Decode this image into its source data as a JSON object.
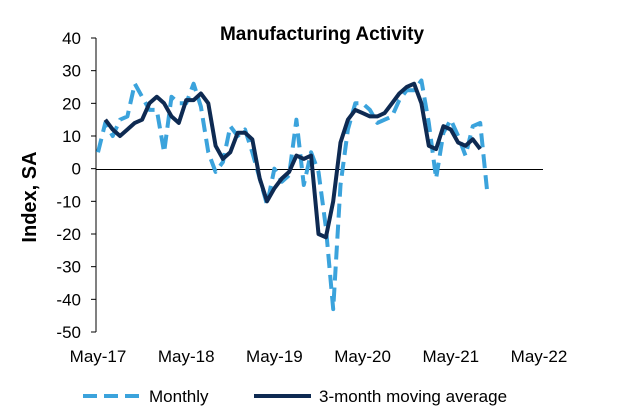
{
  "chart_data": {
    "type": "line",
    "title": "Manufacturing Activity",
    "xlabel": "",
    "ylabel": "Index, SA",
    "ylim": [
      -50,
      40
    ],
    "yticks": [
      40,
      30,
      20,
      10,
      0,
      -10,
      -20,
      -30,
      -40,
      -50
    ],
    "grid": false,
    "legend_position": "bottom",
    "x_tick_labels": [
      {
        "index": 0,
        "label": "May-17"
      },
      {
        "index": 12,
        "label": "May-18"
      },
      {
        "index": 24,
        "label": "May-19"
      },
      {
        "index": 36,
        "label": "May-20"
      },
      {
        "index": 48,
        "label": "May-21"
      },
      {
        "index": 60,
        "label": "May-22"
      }
    ],
    "series": [
      {
        "name": "Monthly",
        "color": "#3ba3dc",
        "style": "dashed",
        "values": [
          5,
          14,
          10,
          15,
          16,
          26,
          22,
          18,
          18,
          5,
          22,
          20,
          20,
          26,
          19,
          5,
          -1,
          2,
          13,
          10,
          12,
          5,
          -3,
          -11,
          0,
          -4,
          -2,
          15,
          -5,
          5,
          -1,
          -18,
          -43,
          -5,
          12,
          20,
          20,
          18,
          14,
          15,
          16,
          21,
          24,
          24,
          27,
          14,
          -3,
          11,
          15,
          10,
          4,
          13,
          14,
          -8
        ]
      },
      {
        "name": "3-month moving average",
        "color": "#0e2a52",
        "style": "solid",
        "values": [
          15,
          12,
          10,
          12,
          14,
          15,
          20,
          22,
          20,
          16,
          14,
          21,
          21,
          23,
          20,
          7,
          3,
          5,
          11,
          11,
          9,
          -3,
          -10,
          -6,
          -3,
          -1,
          4,
          3,
          4,
          -20,
          -21,
          -10,
          8,
          15,
          18,
          17,
          16,
          16,
          17,
          20,
          23,
          25,
          26,
          20,
          7,
          6,
          13,
          12,
          8,
          7,
          9,
          6
        ]
      }
    ],
    "series_x_start": [
      0,
      1
    ],
    "legend": [
      "Monthly",
      "3-month moving average"
    ]
  }
}
